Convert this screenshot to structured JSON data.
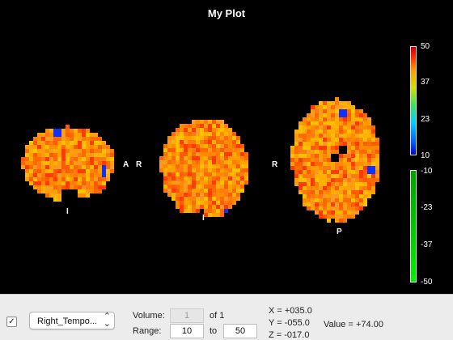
{
  "plot": {
    "title": "My Plot"
  },
  "slices": {
    "sagittal": {
      "label_right": "A",
      "label_bottom": "I"
    },
    "coronal": {
      "label_left": "R",
      "label_bottom": "I"
    },
    "axial": {
      "label_left": "R",
      "label_bottom": "P"
    }
  },
  "colorbar": {
    "positive_ticks": [
      "50",
      "37",
      "23",
      "10"
    ],
    "negative_ticks": [
      "-10",
      "-23",
      "-37",
      "-50"
    ],
    "colors": {
      "max": "#c00000",
      "mid": "#ffa000",
      "min": "#0000d0",
      "neg": "#00c000"
    }
  },
  "controls": {
    "overlay_enabled": true,
    "check_glyph": "✓",
    "overlay_name": "Right_Tempo...",
    "volume_label": "Volume:",
    "volume_value": "1",
    "volume_of": "of 1",
    "range_label": "Range:",
    "range_min": "10",
    "range_to": "to",
    "range_max": "50",
    "coord_x": "X = +035.0",
    "coord_y": "Y = -055.0",
    "coord_z": "Z = -017.0",
    "value_label": "Value =",
    "value": "+74.00"
  }
}
